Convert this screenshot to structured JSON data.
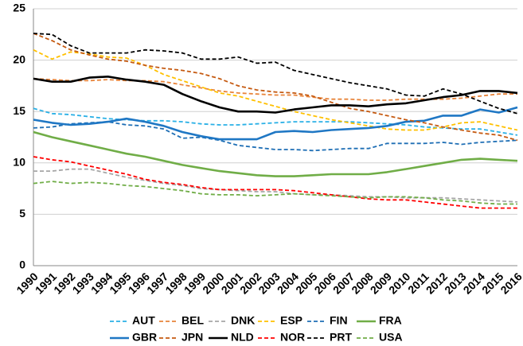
{
  "chart_data": {
    "type": "line",
    "categories": [
      "1990",
      "1991",
      "1992",
      "1993",
      "1994",
      "1995",
      "1996",
      "1997",
      "1998",
      "1999",
      "2000",
      "2001",
      "2002",
      "2003",
      "2004",
      "2005",
      "2006",
      "2007",
      "2008",
      "2009",
      "2010",
      "2011",
      "2012",
      "2013",
      "2014",
      "2015",
      "2016"
    ],
    "ylim": [
      0,
      25
    ],
    "yticks": [
      0,
      5,
      10,
      15,
      20,
      25
    ],
    "grid": true,
    "legend": "bottom",
    "series": [
      {
        "name": "AUT",
        "color": "#2ab0e6",
        "dashed": true,
        "values": [
          15.3,
          14.8,
          14.7,
          14.5,
          14.3,
          14.2,
          14.1,
          14.1,
          14.0,
          13.8,
          13.7,
          13.7,
          13.8,
          13.9,
          14.0,
          14.0,
          14.0,
          14.0,
          13.9,
          13.8,
          13.7,
          13.5,
          13.4,
          13.3,
          13.3,
          13.0,
          12.7
        ]
      },
      {
        "name": "BEL",
        "color": "#e8843a",
        "dashed": true,
        "values": [
          18.2,
          18.1,
          18.0,
          18.0,
          18.1,
          18.0,
          18.0,
          17.9,
          17.6,
          17.3,
          17.0,
          16.8,
          16.7,
          16.6,
          16.6,
          16.4,
          16.2,
          16.2,
          16.1,
          16.1,
          16.2,
          16.2,
          16.2,
          16.3,
          16.5,
          16.7,
          16.7
        ]
      },
      {
        "name": "DNK",
        "color": "#a6a6a6",
        "dashed": true,
        "values": [
          9.2,
          9.2,
          9.4,
          9.4,
          9.0,
          8.6,
          8.3,
          8.0,
          7.8,
          7.5,
          7.4,
          7.3,
          7.2,
          7.2,
          7.0,
          6.9,
          6.9,
          6.8,
          6.7,
          6.7,
          6.6,
          6.6,
          6.6,
          6.5,
          6.4,
          6.3,
          6.2
        ]
      },
      {
        "name": "ESP",
        "color": "#ffc000",
        "dashed": true,
        "values": [
          21.0,
          20.1,
          20.8,
          20.6,
          20.3,
          20.2,
          19.5,
          18.6,
          18.0,
          17.4,
          16.8,
          16.5,
          16.0,
          15.5,
          15.0,
          14.6,
          14.2,
          13.9,
          13.6,
          13.3,
          13.2,
          13.2,
          13.5,
          13.9,
          14.0,
          13.6,
          13.2
        ]
      },
      {
        "name": "FIN",
        "color": "#1f6fb5",
        "dashed": true,
        "values": [
          13.4,
          13.5,
          13.8,
          13.9,
          14.0,
          13.7,
          13.6,
          13.3,
          12.4,
          12.5,
          12.2,
          11.7,
          11.5,
          11.3,
          11.3,
          11.2,
          11.3,
          11.4,
          11.4,
          11.9,
          11.9,
          11.9,
          12.0,
          11.8,
          12.0,
          12.1,
          12.2
        ]
      },
      {
        "name": "FRA",
        "color": "#70ad47",
        "dashed": false,
        "values": [
          13.0,
          12.5,
          12.1,
          11.7,
          11.3,
          10.9,
          10.6,
          10.2,
          9.8,
          9.5,
          9.2,
          9.0,
          8.8,
          8.7,
          8.7,
          8.8,
          8.9,
          8.9,
          8.9,
          9.1,
          9.4,
          9.7,
          10.0,
          10.3,
          10.4,
          10.3,
          10.2
        ]
      },
      {
        "name": "GBR",
        "color": "#1f77c4",
        "dashed": false,
        "values": [
          14.2,
          13.9,
          13.7,
          13.8,
          14.0,
          14.3,
          14.0,
          13.6,
          13.0,
          12.6,
          12.3,
          12.3,
          12.3,
          13.0,
          13.1,
          13.0,
          13.2,
          13.3,
          13.4,
          13.6,
          14.0,
          14.1,
          14.6,
          14.6,
          15.2,
          14.9,
          15.4
        ]
      },
      {
        "name": "JPN",
        "color": "#c55a11",
        "dashed": true,
        "values": [
          22.6,
          21.9,
          21.0,
          20.5,
          20.1,
          19.9,
          19.5,
          19.2,
          19.0,
          18.7,
          18.2,
          17.5,
          17.1,
          16.9,
          16.8,
          16.5,
          15.9,
          15.3,
          15.0,
          14.6,
          14.2,
          13.9,
          13.5,
          13.2,
          12.9,
          12.7,
          12.2
        ]
      },
      {
        "name": "NLD",
        "color": "#000000",
        "dashed": false,
        "values": [
          18.2,
          17.9,
          17.9,
          18.3,
          18.4,
          18.1,
          17.9,
          17.6,
          16.7,
          16.0,
          15.4,
          15.0,
          15.0,
          14.9,
          15.2,
          15.4,
          15.6,
          15.6,
          15.5,
          15.7,
          15.8,
          16.1,
          16.4,
          16.6,
          17.0,
          17.0,
          16.8
        ]
      },
      {
        "name": "NOR",
        "color": "#ff0000",
        "dashed": true,
        "values": [
          10.6,
          10.3,
          10.1,
          9.7,
          9.3,
          8.9,
          8.4,
          8.1,
          7.9,
          7.6,
          7.4,
          7.4,
          7.4,
          7.4,
          7.3,
          7.1,
          6.9,
          6.7,
          6.5,
          6.4,
          6.4,
          6.2,
          6.0,
          5.8,
          5.6,
          5.6,
          5.6
        ]
      },
      {
        "name": "PRT",
        "color": "#000000",
        "dashed": true,
        "values": [
          22.6,
          22.5,
          21.4,
          20.7,
          20.7,
          20.7,
          21.0,
          20.9,
          20.7,
          20.1,
          20.1,
          20.3,
          19.7,
          19.8,
          19.0,
          18.6,
          18.2,
          17.8,
          17.5,
          17.2,
          16.6,
          16.5,
          17.2,
          16.7,
          16.0,
          15.3,
          14.8
        ]
      },
      {
        "name": "USA",
        "color": "#70ad47",
        "dashed": true,
        "values": [
          8.0,
          8.2,
          8.0,
          8.1,
          8.0,
          7.8,
          7.7,
          7.5,
          7.3,
          7.0,
          6.9,
          6.9,
          6.8,
          6.9,
          7.0,
          6.9,
          6.8,
          6.7,
          6.6,
          6.7,
          6.7,
          6.6,
          6.4,
          6.3,
          6.1,
          6.0,
          6.0
        ]
      }
    ]
  }
}
